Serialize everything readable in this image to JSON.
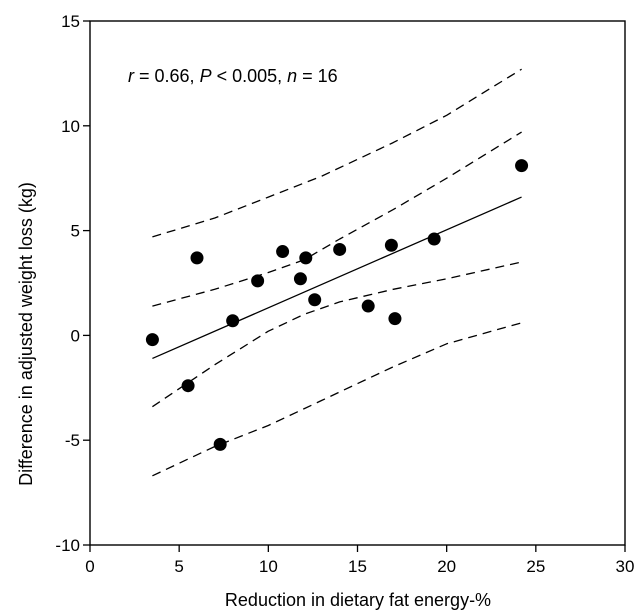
{
  "chart_data": {
    "type": "scatter",
    "title": "",
    "xlabel": "Reduction in dietary fat energy-%",
    "ylabel": "Difference in adjusted weight loss (kg)",
    "xlim": [
      0,
      30
    ],
    "ylim": [
      -10,
      15
    ],
    "x_ticks": [
      0,
      5,
      10,
      15,
      20,
      25,
      30
    ],
    "y_ticks": [
      -10,
      -5,
      0,
      5,
      10,
      15
    ],
    "x_tick_labels": [
      "0",
      "5",
      "10",
      "15",
      "20",
      "25",
      "30"
    ],
    "y_tick_labels": [
      "-10",
      "-5",
      "0",
      "5",
      "10",
      "15"
    ],
    "grid": false,
    "legend": "none",
    "annotation": {
      "r_symbol": "r",
      "r_text": " = 0.66, ",
      "p_symbol": "P",
      "p_text": " < 0.005, ",
      "n_symbol": "n",
      "n_text": " = 16"
    },
    "points": [
      {
        "x": 3.5,
        "y": -0.2
      },
      {
        "x": 5.5,
        "y": -2.4
      },
      {
        "x": 6.0,
        "y": 3.7
      },
      {
        "x": 7.3,
        "y": -5.2
      },
      {
        "x": 8.0,
        "y": 0.7
      },
      {
        "x": 9.4,
        "y": 2.6
      },
      {
        "x": 10.8,
        "y": 4.0
      },
      {
        "x": 11.8,
        "y": 2.7
      },
      {
        "x": 12.1,
        "y": 3.7
      },
      {
        "x": 12.6,
        "y": 1.7
      },
      {
        "x": 14.0,
        "y": 4.1
      },
      {
        "x": 15.6,
        "y": 1.4
      },
      {
        "x": 16.9,
        "y": 4.3
      },
      {
        "x": 17.1,
        "y": 0.8
      },
      {
        "x": 19.3,
        "y": 4.6
      },
      {
        "x": 24.2,
        "y": 8.1
      }
    ],
    "regression_line": {
      "x": [
        3.5,
        24.2
      ],
      "y": [
        -1.1,
        6.6
      ],
      "style": "solid"
    },
    "confidence_band": {
      "style": "dashed",
      "upper": {
        "x": [
          3.5,
          7,
          10,
          12,
          14,
          17,
          20,
          24.2
        ],
        "y": [
          1.4,
          2.2,
          3.0,
          3.6,
          4.6,
          6.0,
          7.5,
          9.7
        ]
      },
      "lower": {
        "x": [
          3.5,
          7,
          10,
          12,
          14,
          17,
          20,
          24.2
        ],
        "y": [
          -3.4,
          -1.4,
          0.2,
          1.0,
          1.6,
          2.2,
          2.7,
          3.5
        ]
      }
    },
    "prediction_band": {
      "style": "dashed",
      "upper": {
        "x": [
          3.5,
          7,
          10,
          13,
          17,
          20,
          24.2
        ],
        "y": [
          4.7,
          5.6,
          6.6,
          7.6,
          9.2,
          10.5,
          12.7
        ]
      },
      "lower": {
        "x": [
          3.5,
          7,
          10,
          13,
          17,
          20,
          24.2
        ],
        "y": [
          -6.7,
          -5.3,
          -4.3,
          -3.1,
          -1.5,
          -0.4,
          0.6
        ]
      }
    },
    "colors": {
      "points": "#000000",
      "lines": "#000000",
      "background": "#ffffff"
    }
  }
}
